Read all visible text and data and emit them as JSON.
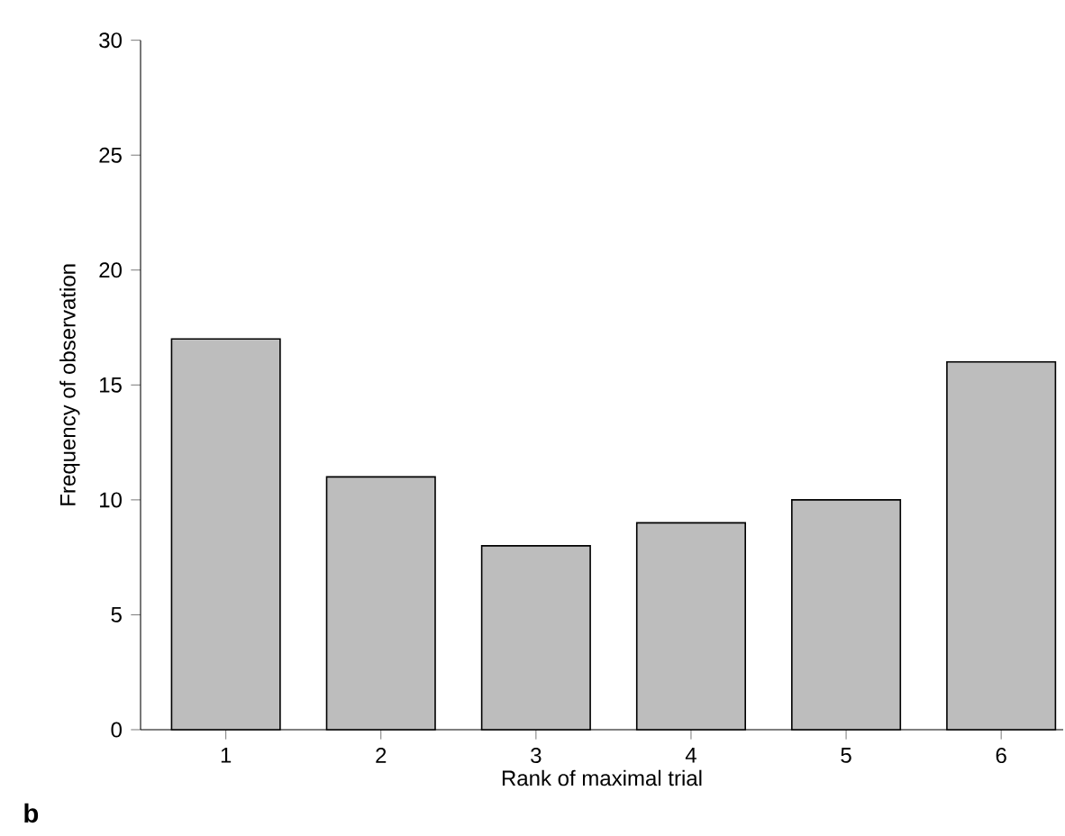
{
  "chart_data": {
    "type": "bar",
    "xlabel": "Rank of maximal trial",
    "ylabel": "Frequency of observation",
    "categories": [
      "1",
      "2",
      "3",
      "4",
      "5",
      "6"
    ],
    "values": [
      17,
      11,
      8,
      9,
      10,
      16
    ],
    "color": "#bdbdbd",
    "ylim": [
      0,
      30
    ],
    "yticks": [
      0,
      5,
      10,
      15,
      20,
      25,
      30
    ],
    "annotations": [
      "**b**"
    ]
  }
}
